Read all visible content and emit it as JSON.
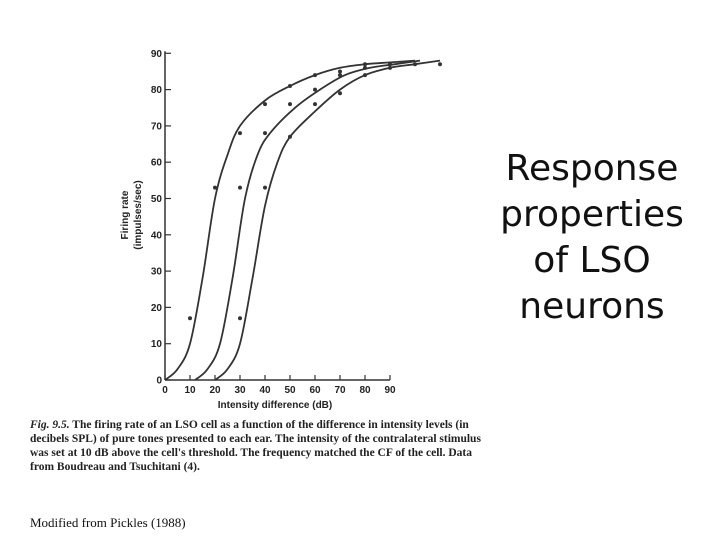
{
  "slide": {
    "title": "Response properties of LSO neurons",
    "credit": "Modified from Pickles (1988)"
  },
  "caption": {
    "label": "Fig. 9.5.",
    "text": "The firing rate of an LSO cell as a function of the difference in intensity levels (in decibels SPL) of pure tones presented to each ear. The intensity of the contralateral stimulus was set at 10 dB above the cell's threshold. The frequency matched the CF of the cell. Data from Boudreau and Tsuchitani (4)."
  },
  "chart_data": {
    "type": "line",
    "xlabel": "Intensity difference (dB)",
    "ylabel_line1": "Firing rate",
    "ylabel_line2": "(impulses/sec)",
    "xlim": [
      0,
      110
    ],
    "ylim": [
      0,
      90
    ],
    "xticks": [
      0,
      10,
      20,
      30,
      40,
      50,
      60,
      70,
      80,
      90
    ],
    "yticks": [
      0,
      10,
      20,
      30,
      40,
      50,
      60,
      70,
      80,
      90
    ],
    "grid": false,
    "legend": "none",
    "series": [
      {
        "color": "#333333",
        "curve": [
          [
            0,
            0
          ],
          [
            5,
            3
          ],
          [
            10,
            10
          ],
          [
            15,
            28
          ],
          [
            20,
            50
          ],
          [
            25,
            62
          ],
          [
            30,
            70
          ],
          [
            40,
            77
          ],
          [
            50,
            81
          ],
          [
            60,
            84
          ],
          [
            70,
            86
          ],
          [
            80,
            87
          ],
          [
            90,
            87.5
          ],
          [
            100,
            88
          ]
        ],
        "points": [
          [
            10,
            17
          ],
          [
            20,
            53
          ],
          [
            30,
            68
          ],
          [
            40,
            76
          ],
          [
            50,
            81
          ],
          [
            60,
            84
          ],
          [
            70,
            85
          ],
          [
            80,
            87
          ]
        ]
      },
      {
        "color": "#333333",
        "curve": [
          [
            12,
            0
          ],
          [
            17,
            3
          ],
          [
            22,
            10
          ],
          [
            27,
            28
          ],
          [
            32,
            50
          ],
          [
            37,
            62
          ],
          [
            42,
            68
          ],
          [
            52,
            75
          ],
          [
            62,
            80
          ],
          [
            72,
            84
          ],
          [
            82,
            86
          ],
          [
            92,
            87
          ],
          [
            102,
            88
          ]
        ],
        "points": [
          [
            30,
            53
          ],
          [
            40,
            68
          ],
          [
            50,
            76
          ],
          [
            60,
            80
          ],
          [
            70,
            84
          ],
          [
            80,
            86
          ],
          [
            90,
            87
          ]
        ]
      },
      {
        "color": "#333333",
        "curve": [
          [
            20,
            0
          ],
          [
            25,
            3
          ],
          [
            30,
            10
          ],
          [
            35,
            28
          ],
          [
            40,
            48
          ],
          [
            45,
            60
          ],
          [
            50,
            67
          ],
          [
            60,
            74
          ],
          [
            70,
            80
          ],
          [
            80,
            84
          ],
          [
            90,
            86
          ],
          [
            100,
            87
          ],
          [
            110,
            88
          ]
        ],
        "points": [
          [
            30,
            17
          ],
          [
            40,
            53
          ],
          [
            50,
            67
          ],
          [
            60,
            76
          ],
          [
            70,
            79
          ],
          [
            80,
            84
          ],
          [
            90,
            86
          ],
          [
            100,
            87
          ],
          [
            110,
            87
          ]
        ]
      }
    ]
  }
}
